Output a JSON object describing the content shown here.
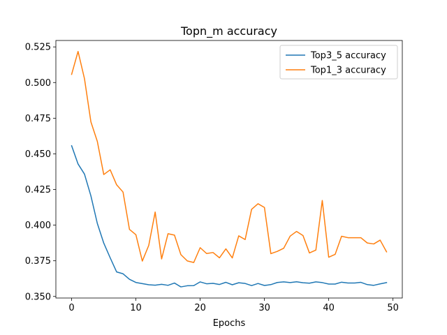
{
  "chart_data": {
    "type": "line",
    "title": "Topn_m accuracy",
    "xlabel": "Epochs",
    "ylabel": "",
    "xlim": [
      -2.45,
      51.45
    ],
    "ylim": [
      0.3489,
      0.5295
    ],
    "xticks": [
      0,
      10,
      20,
      30,
      40,
      50
    ],
    "yticks": [
      0.35,
      0.375,
      0.4,
      0.425,
      0.45,
      0.475,
      0.5,
      0.525
    ],
    "ytick_labels": [
      "0.350",
      "0.375",
      "0.400",
      "0.425",
      "0.450",
      "0.475",
      "0.500",
      "0.525"
    ],
    "grid": false,
    "legend_position": "top-right",
    "x": [
      0,
      1,
      2,
      3,
      4,
      5,
      6,
      7,
      8,
      9,
      10,
      11,
      12,
      13,
      14,
      15,
      16,
      17,
      18,
      19,
      20,
      21,
      22,
      23,
      24,
      25,
      26,
      27,
      28,
      29,
      30,
      31,
      32,
      33,
      34,
      35,
      36,
      37,
      38,
      39,
      40,
      41,
      42,
      43,
      44,
      45,
      46,
      47,
      48,
      49
    ],
    "series": [
      {
        "name": "Top3_5 accuracy",
        "color": "#1f77b4",
        "values": [
          0.4557,
          0.4429,
          0.4358,
          0.4205,
          0.4012,
          0.3874,
          0.3771,
          0.3672,
          0.3659,
          0.362,
          0.3598,
          0.359,
          0.3582,
          0.3579,
          0.3585,
          0.3578,
          0.3594,
          0.3567,
          0.3575,
          0.3576,
          0.3602,
          0.3589,
          0.3592,
          0.3584,
          0.3599,
          0.3582,
          0.3596,
          0.3591,
          0.3576,
          0.3591,
          0.3577,
          0.3583,
          0.3598,
          0.3602,
          0.3597,
          0.3603,
          0.3596,
          0.3593,
          0.3602,
          0.3597,
          0.3587,
          0.3587,
          0.36,
          0.3594,
          0.3594,
          0.3599,
          0.3583,
          0.3578,
          0.3588,
          0.3597
        ]
      },
      {
        "name": "Top1_3 accuracy",
        "color": "#ff7f0e",
        "values": [
          0.5057,
          0.5218,
          0.5027,
          0.4724,
          0.4587,
          0.4355,
          0.4388,
          0.4283,
          0.4232,
          0.397,
          0.3933,
          0.3748,
          0.3858,
          0.4092,
          0.3763,
          0.394,
          0.393,
          0.3793,
          0.3749,
          0.3738,
          0.3842,
          0.3801,
          0.3808,
          0.3771,
          0.3834,
          0.377,
          0.3925,
          0.3899,
          0.4111,
          0.415,
          0.4124,
          0.38,
          0.3816,
          0.3838,
          0.3923,
          0.3956,
          0.3927,
          0.3805,
          0.3825,
          0.4173,
          0.3775,
          0.3795,
          0.3922,
          0.3912,
          0.3912,
          0.3912,
          0.3875,
          0.3868,
          0.3895,
          0.3813
        ]
      }
    ]
  }
}
